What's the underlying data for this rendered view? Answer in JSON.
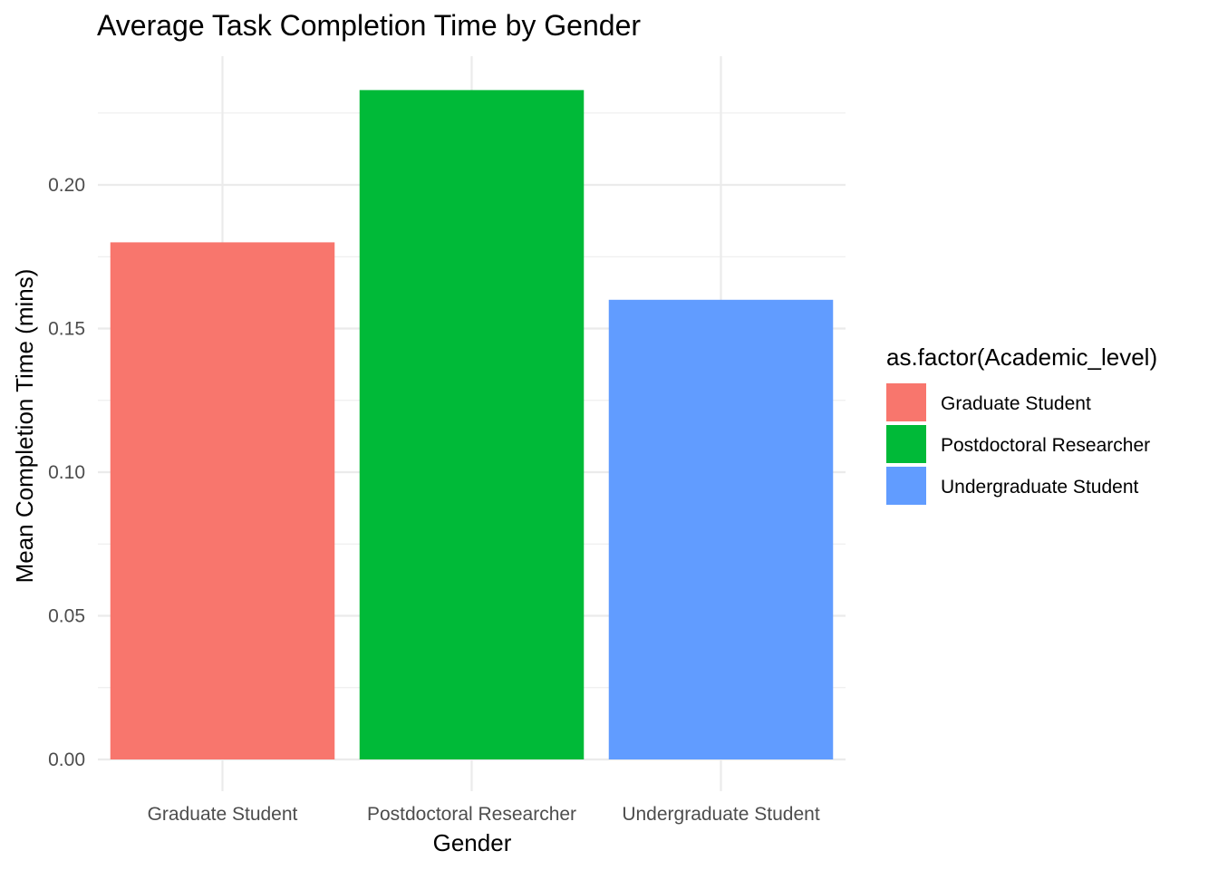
{
  "chart_data": {
    "type": "bar",
    "title": "Average Task Completion Time by Gender",
    "xlabel": "Gender",
    "ylabel": "Mean Completion Time (mins)",
    "categories": [
      "Graduate Student",
      "Postdoctoral Researcher",
      "Undergraduate Student"
    ],
    "values": [
      0.18,
      0.233,
      0.16
    ],
    "colors": [
      "#F8766D",
      "#00BA38",
      "#619CFF"
    ],
    "ylim": [
      0,
      0.245
    ],
    "yticks": [
      0.0,
      0.05,
      0.1,
      0.15,
      0.2
    ],
    "ytick_labels": [
      "0.00",
      "0.05",
      "0.10",
      "0.15",
      "0.20"
    ],
    "grid": true,
    "legend": {
      "title": "as.factor(Academic_level)",
      "position": "right",
      "entries": [
        "Graduate Student",
        "Postdoctoral Researcher",
        "Undergraduate Student"
      ]
    }
  }
}
